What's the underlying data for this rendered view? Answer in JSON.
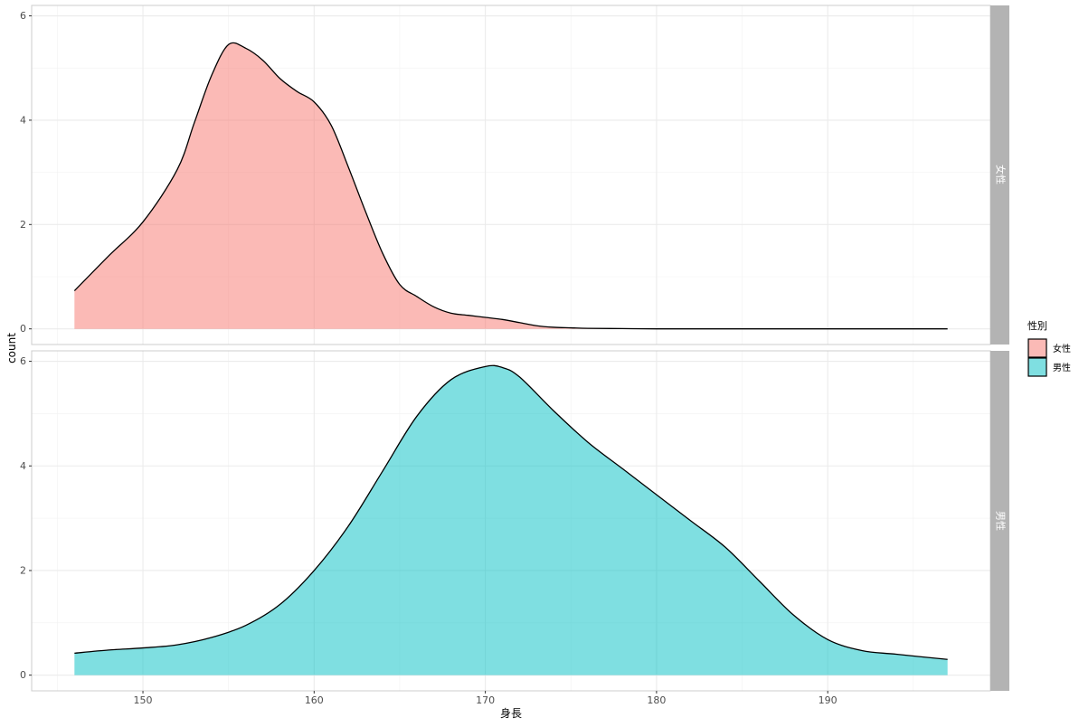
{
  "chart_data": {
    "type": "area",
    "subtype": "density-facets",
    "title": "",
    "xlabel": "身長",
    "ylabel": "count",
    "xlim": [
      143.5,
      199.5
    ],
    "ylim": [
      -0.3,
      6.2
    ],
    "x_ticks": [
      150,
      160,
      170,
      180,
      190
    ],
    "x_tick_labels": [
      "150",
      "160",
      "170",
      "180",
      "190"
    ],
    "y_ticks": [
      0,
      2,
      4,
      6
    ],
    "y_tick_labels": [
      "0",
      "2",
      "4",
      "6"
    ],
    "grid": true,
    "legend": {
      "title": "性別",
      "position": "right"
    },
    "facets": [
      {
        "strip": "女性",
        "name": "女性",
        "color": "#F8766D",
        "x": [
          146,
          148,
          150,
          152,
          153,
          154,
          155,
          156,
          157,
          158,
          159,
          160,
          161,
          162,
          163,
          164,
          165,
          166,
          167,
          168,
          169,
          170,
          171,
          172,
          173,
          174,
          175,
          176,
          178,
          180,
          185,
          190,
          197
        ],
        "values": [
          0.73,
          1.4,
          2.05,
          3.05,
          3.95,
          4.85,
          5.45,
          5.38,
          5.15,
          4.8,
          4.55,
          4.35,
          3.9,
          3.1,
          2.25,
          1.45,
          0.85,
          0.62,
          0.42,
          0.3,
          0.26,
          0.22,
          0.18,
          0.12,
          0.06,
          0.03,
          0.02,
          0.01,
          0.005,
          0.0,
          0.0,
          0.0,
          0.0
        ]
      },
      {
        "strip": "男性",
        "name": "男性",
        "color": "#00BFC4",
        "x": [
          146,
          148,
          150,
          152,
          154,
          156,
          158,
          160,
          162,
          164,
          166,
          168,
          170,
          171,
          172,
          174,
          176,
          178,
          180,
          182,
          184,
          186,
          188,
          190,
          192,
          194,
          197
        ],
        "values": [
          0.42,
          0.48,
          0.52,
          0.58,
          0.72,
          0.95,
          1.35,
          2.0,
          2.85,
          3.9,
          4.95,
          5.65,
          5.9,
          5.88,
          5.7,
          5.05,
          4.45,
          3.95,
          3.45,
          2.95,
          2.45,
          1.8,
          1.15,
          0.68,
          0.47,
          0.4,
          0.3
        ]
      }
    ]
  }
}
